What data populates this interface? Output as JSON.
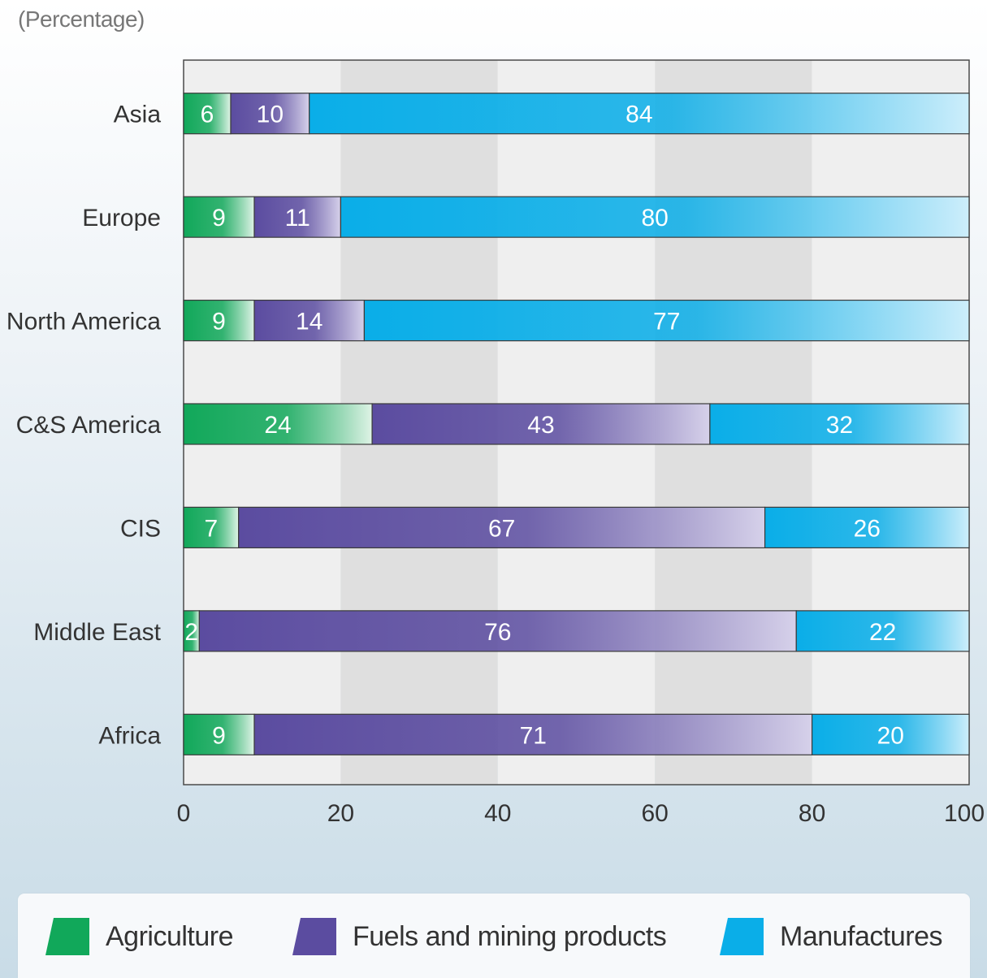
{
  "chart_data": {
    "type": "bar",
    "orientation": "horizontal",
    "stacked": true,
    "unit_label": "(Percentage)",
    "title": "",
    "xlabel": "",
    "ylabel": "",
    "xlim": [
      0,
      100
    ],
    "x_ticks": [
      "0",
      "20",
      "40",
      "60",
      "80",
      "100"
    ],
    "categories": [
      "Asia",
      "Europe",
      "North America",
      "C&S America",
      "CIS",
      "Middle East",
      "Africa"
    ],
    "series": [
      {
        "name": "Agriculture",
        "color": "#11a85a",
        "values": [
          6,
          9,
          9,
          24,
          7,
          2,
          9
        ]
      },
      {
        "name": "Fuels and mining products",
        "color": "#5b4ca0",
        "values": [
          10,
          11,
          14,
          43,
          67,
          76,
          71
        ]
      },
      {
        "name": "Manufactures",
        "color": "#0aaee8",
        "values": [
          84,
          80,
          77,
          32,
          26,
          22,
          20
        ]
      }
    ],
    "grid": "alternating vertical bands",
    "legend": "bottom"
  }
}
